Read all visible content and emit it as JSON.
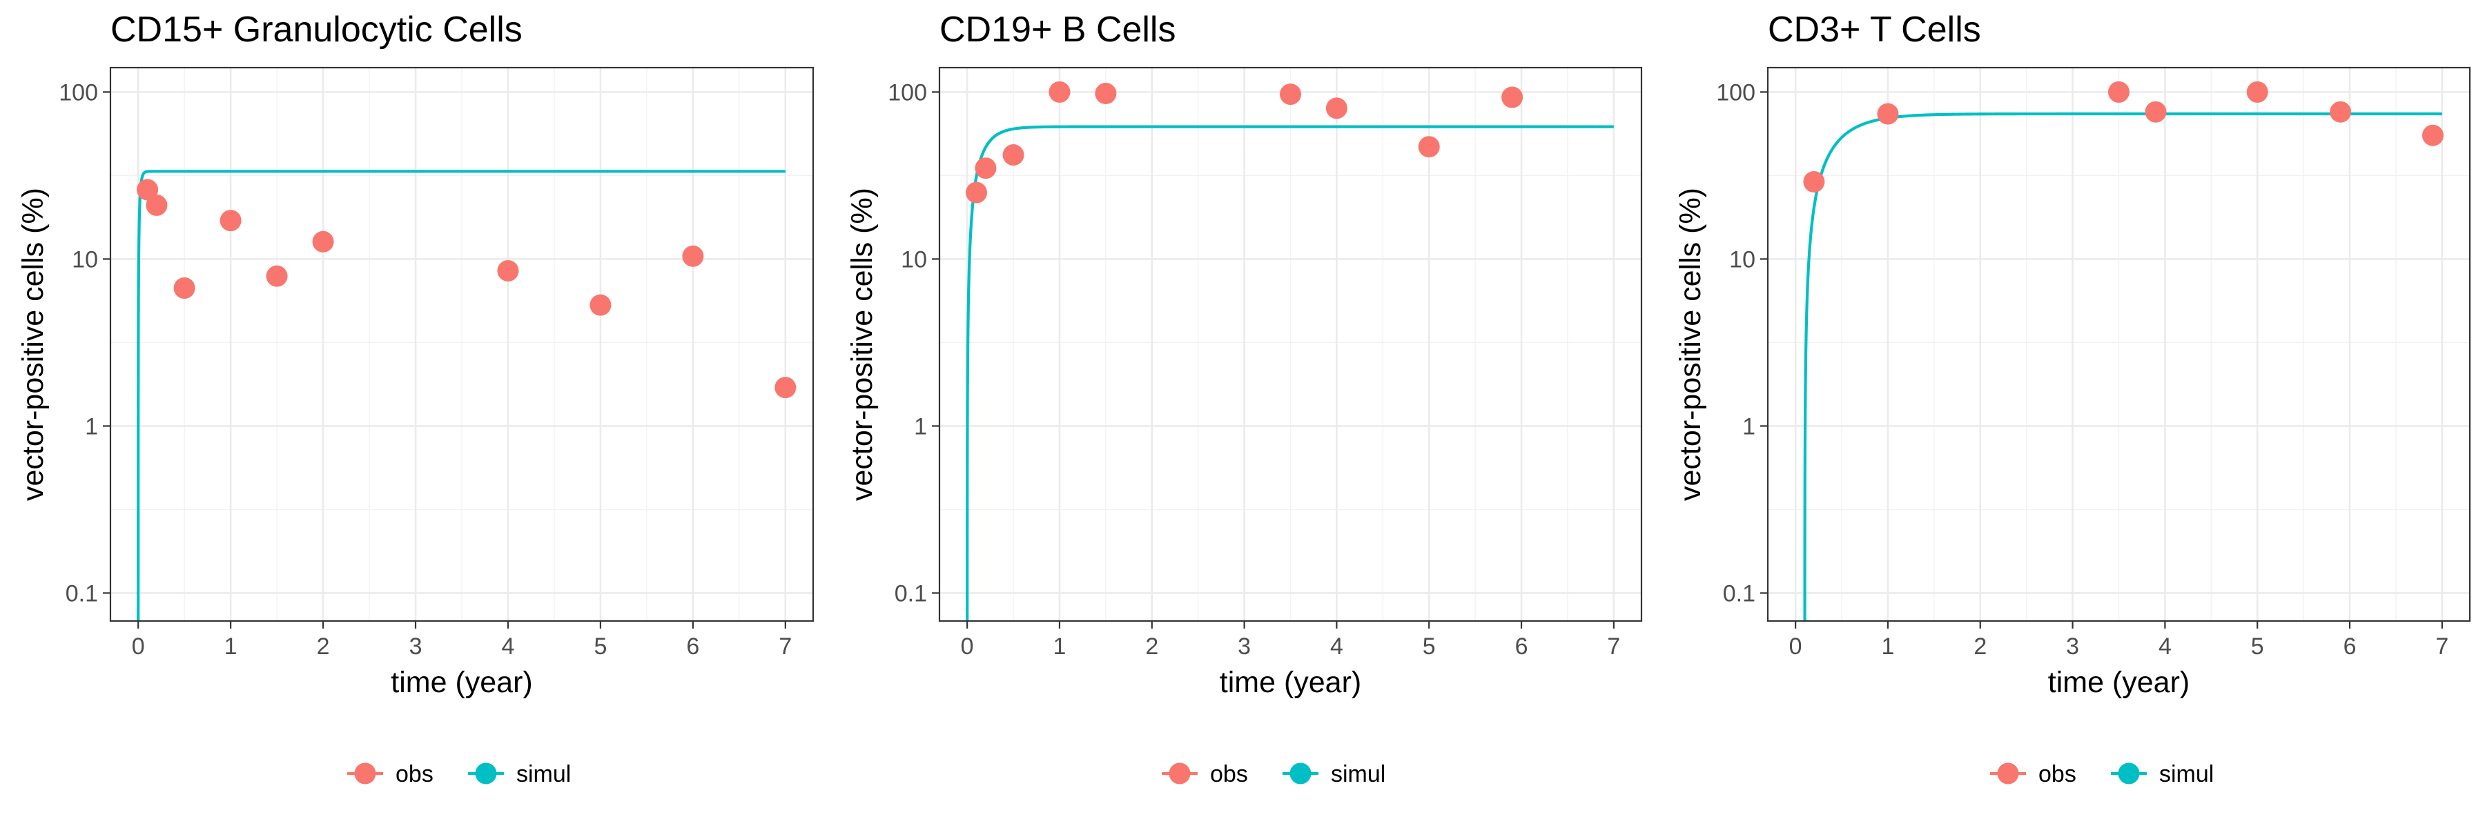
{
  "colors": {
    "obs": "#F8766D",
    "simul": "#00BFC4"
  },
  "chart_data": [
    {
      "type": "scatter",
      "title": "CD15+ Granulocytic Cells",
      "xlabel": "time (year)",
      "ylabel": "vector-positive cells (%)",
      "xlim": [
        -0.3,
        7.3
      ],
      "ylim": [
        0.068,
        140
      ],
      "log_y": true,
      "grid": true,
      "x_ticks": [
        0,
        1,
        2,
        3,
        4,
        5,
        6,
        7
      ],
      "y_ticks": [
        0.1,
        1,
        10,
        100
      ],
      "y_tick_labels": [
        "0.1",
        "1",
        "10",
        "100"
      ],
      "legend_position": "bottom",
      "series": [
        {
          "name": "obs",
          "kind": "points",
          "x": [
            0.1,
            0.2,
            0.5,
            1.0,
            1.5,
            2.0,
            4.0,
            5.0,
            6.0,
            7.0
          ],
          "y": [
            26,
            21,
            6.7,
            17,
            7.9,
            12.7,
            8.5,
            5.3,
            10.4,
            1.7
          ]
        },
        {
          "name": "simul",
          "kind": "line",
          "curve": {
            "ymax": 33.5,
            "rate": 60,
            "t0": 0.0
          },
          "x_range": [
            0,
            7
          ]
        }
      ]
    },
    {
      "type": "scatter",
      "title": "CD19+ B Cells",
      "xlabel": "time (year)",
      "ylabel": "vector-positive cells (%)",
      "xlim": [
        -0.3,
        7.3
      ],
      "ylim": [
        0.068,
        140
      ],
      "log_y": true,
      "grid": true,
      "x_ticks": [
        0,
        1,
        2,
        3,
        4,
        5,
        6,
        7
      ],
      "y_ticks": [
        0.1,
        1,
        10,
        100
      ],
      "y_tick_labels": [
        "0.1",
        "1",
        "10",
        "100"
      ],
      "legend_position": "bottom",
      "series": [
        {
          "name": "obs",
          "kind": "points",
          "x": [
            0.1,
            0.2,
            0.5,
            1.0,
            1.5,
            3.5,
            4.0,
            5.0,
            5.9
          ],
          "y": [
            25,
            35,
            42,
            100,
            98,
            97,
            80,
            47,
            93
          ]
        },
        {
          "name": "simul",
          "kind": "line",
          "curve": {
            "ymax": 62,
            "rate": 7,
            "t0": 0.0
          },
          "x_range": [
            0,
            7
          ]
        }
      ]
    },
    {
      "type": "scatter",
      "title": "CD3+ T Cells",
      "xlabel": "time (year)",
      "ylabel": "vector-positive cells (%)",
      "xlim": [
        -0.3,
        7.3
      ],
      "ylim": [
        0.068,
        140
      ],
      "log_y": true,
      "grid": true,
      "x_ticks": [
        0,
        1,
        2,
        3,
        4,
        5,
        6,
        7
      ],
      "y_ticks": [
        0.1,
        1,
        10,
        100
      ],
      "y_tick_labels": [
        "0.1",
        "1",
        "10",
        "100"
      ],
      "legend_position": "bottom",
      "series": [
        {
          "name": "obs",
          "kind": "points",
          "x": [
            0.2,
            1.0,
            3.5,
            3.9,
            5.0,
            5.9,
            6.9
          ],
          "y": [
            29,
            74,
            100,
            76,
            100,
            76,
            55
          ]
        },
        {
          "name": "simul",
          "kind": "line",
          "curve": {
            "ymax": 74,
            "rate": 3.2,
            "t0": 0.1,
            "lag": 0.1
          },
          "x_range": [
            0.1,
            7
          ]
        }
      ]
    }
  ]
}
